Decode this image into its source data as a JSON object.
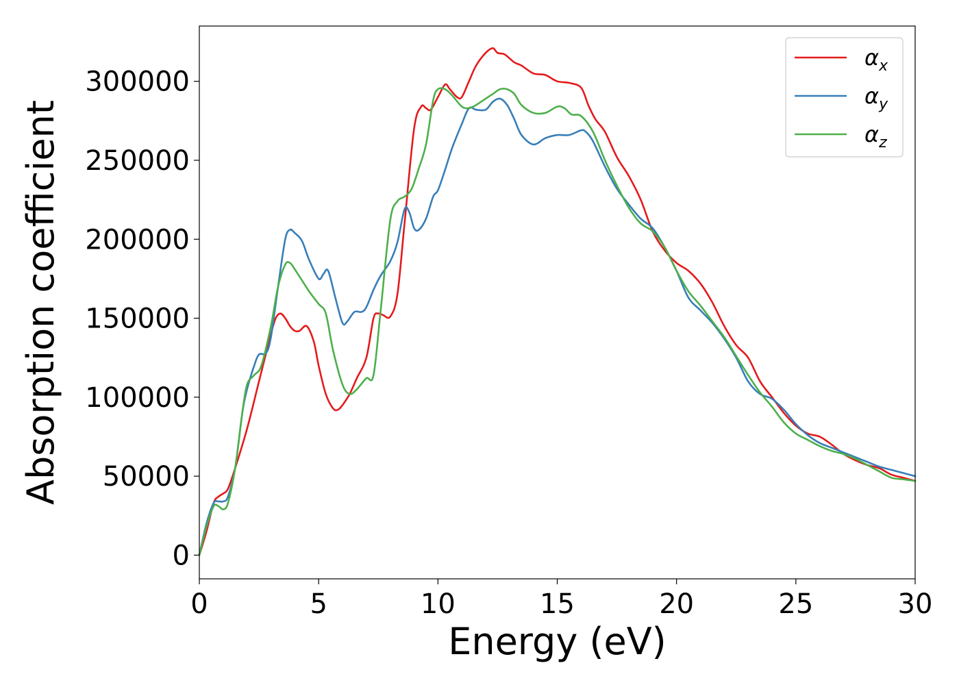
{
  "chart_data": {
    "type": "line",
    "xlabel": "Energy (eV)",
    "ylabel": "Absorption coefficient",
    "xlim": [
      0,
      30
    ],
    "ylim": [
      -15000,
      335000
    ],
    "xticks": [
      0,
      5,
      10,
      15,
      20,
      25,
      30
    ],
    "yticks": [
      0,
      50000,
      100000,
      150000,
      200000,
      250000,
      300000
    ],
    "grid": false,
    "legend_position": "top-right",
    "series": [
      {
        "name": "α",
        "subscript": "x",
        "color": "#e41a1c",
        "x": [
          0,
          0.3,
          0.6,
          0.8,
          1.0,
          1.2,
          1.5,
          2.0,
          2.5,
          3.0,
          3.2,
          3.4,
          3.6,
          3.8,
          4.0,
          4.2,
          4.5,
          4.8,
          5.0,
          5.3,
          5.6,
          5.8,
          6.0,
          6.3,
          6.6,
          7.0,
          7.3,
          7.5,
          7.7,
          8.0,
          8.3,
          8.6,
          9.0,
          9.3,
          9.5,
          9.7,
          10.0,
          10.3,
          10.5,
          10.8,
          11.0,
          11.3,
          11.6,
          12.0,
          12.3,
          12.5,
          12.8,
          13.2,
          13.5,
          14.0,
          14.5,
          15.0,
          15.5,
          16.0,
          16.3,
          16.6,
          17.0,
          17.5,
          18.0,
          18.5,
          19.0,
          19.5,
          20.0,
          20.5,
          21.0,
          21.5,
          22.0,
          22.5,
          23.0,
          23.5,
          24.0,
          24.5,
          25.0,
          25.5,
          26.0,
          26.5,
          27.0,
          27.5,
          28.0,
          28.5,
          29.0,
          29.5,
          30.0
        ],
        "values": [
          0,
          15000,
          33000,
          37000,
          39000,
          42000,
          55000,
          80000,
          110000,
          140000,
          150000,
          153000,
          150000,
          145000,
          142000,
          142000,
          145000,
          135000,
          120000,
          102000,
          93000,
          92000,
          95000,
          102000,
          112000,
          125000,
          150000,
          153000,
          152000,
          151000,
          165000,
          210000,
          270000,
          284000,
          283000,
          282000,
          290000,
          298000,
          295000,
          290000,
          290000,
          300000,
          310000,
          318000,
          321000,
          318000,
          317000,
          312000,
          310000,
          305000,
          304000,
          300000,
          299000,
          296000,
          285000,
          276000,
          268000,
          252000,
          240000,
          225000,
          205000,
          193000,
          185000,
          180000,
          172000,
          160000,
          145000,
          133000,
          125000,
          110000,
          100000,
          90000,
          82000,
          77000,
          75000,
          70000,
          64000,
          60000,
          57000,
          55000,
          51000,
          49000,
          47000
        ]
      },
      {
        "name": "α",
        "subscript": "y",
        "color": "#377eb8",
        "x": [
          0,
          0.3,
          0.6,
          0.8,
          1.0,
          1.2,
          1.5,
          1.8,
          2.0,
          2.3,
          2.5,
          2.8,
          3.0,
          3.3,
          3.6,
          3.8,
          4.0,
          4.3,
          4.6,
          5.0,
          5.2,
          5.4,
          5.7,
          6.0,
          6.2,
          6.5,
          6.8,
          7.0,
          7.3,
          7.6,
          8.0,
          8.3,
          8.6,
          8.8,
          9.0,
          9.2,
          9.5,
          9.8,
          10.0,
          10.3,
          10.6,
          11.0,
          11.3,
          11.6,
          12.0,
          12.3,
          12.6,
          12.9,
          13.2,
          13.5,
          14.0,
          14.5,
          15.0,
          15.5,
          16.0,
          16.2,
          16.5,
          17.0,
          17.5,
          18.0,
          18.5,
          19.0,
          19.5,
          20.0,
          20.5,
          21.0,
          21.5,
          22.0,
          22.5,
          23.0,
          23.5,
          24.0,
          24.5,
          25.0,
          25.5,
          26.0,
          26.5,
          27.0,
          27.5,
          28.0,
          28.5,
          29.0,
          29.5,
          30.0
        ],
        "values": [
          0,
          20000,
          33000,
          34000,
          34000,
          37000,
          55000,
          90000,
          105000,
          120000,
          127000,
          128000,
          138000,
          170000,
          200000,
          206000,
          204000,
          199000,
          187000,
          175000,
          178000,
          180000,
          163000,
          147000,
          148000,
          154000,
          154000,
          157000,
          168000,
          177000,
          186000,
          198000,
          219000,
          217000,
          207000,
          206000,
          213000,
          227000,
          231000,
          244000,
          258000,
          273000,
          283000,
          282000,
          282000,
          287000,
          289000,
          285000,
          276000,
          266000,
          260000,
          264000,
          266000,
          266000,
          269000,
          268000,
          262000,
          246000,
          232000,
          222000,
          213000,
          207000,
          195000,
          180000,
          163000,
          155000,
          147000,
          137000,
          125000,
          110000,
          102000,
          99000,
          92000,
          83000,
          76000,
          71000,
          68000,
          65000,
          62000,
          59000,
          56000,
          54000,
          52000,
          50000
        ]
      },
      {
        "name": "α",
        "subscript": "z",
        "color": "#4daf4a",
        "x": [
          0,
          0.3,
          0.6,
          0.8,
          1.0,
          1.2,
          1.5,
          1.8,
          2.0,
          2.3,
          2.6,
          3.0,
          3.3,
          3.6,
          3.8,
          4.0,
          4.3,
          4.6,
          5.0,
          5.3,
          5.6,
          6.0,
          6.3,
          6.6,
          7.0,
          7.3,
          7.6,
          8.0,
          8.3,
          8.6,
          8.9,
          9.2,
          9.5,
          9.8,
          10.0,
          10.3,
          10.6,
          11.0,
          11.3,
          11.6,
          12.0,
          12.3,
          12.6,
          12.9,
          13.2,
          13.5,
          14.0,
          14.5,
          15.0,
          15.3,
          15.6,
          16.0,
          16.5,
          17.0,
          17.5,
          18.0,
          18.5,
          19.0,
          19.5,
          20.0,
          20.5,
          21.0,
          21.5,
          22.0,
          22.5,
          23.0,
          23.5,
          24.0,
          24.5,
          25.0,
          25.5,
          26.0,
          26.5,
          27.0,
          27.5,
          28.0,
          28.5,
          29.0,
          29.5,
          30.0
        ],
        "values": [
          0,
          18000,
          31000,
          31000,
          29000,
          33000,
          55000,
          90000,
          108000,
          114000,
          120000,
          145000,
          170000,
          184000,
          185000,
          181000,
          174000,
          167000,
          159000,
          153000,
          130000,
          108000,
          102000,
          105000,
          112000,
          114000,
          155000,
          212000,
          224000,
          227000,
          232000,
          245000,
          260000,
          288000,
          295000,
          295000,
          291000,
          284000,
          283000,
          285000,
          289000,
          292000,
          295000,
          295000,
          292000,
          285000,
          280000,
          280000,
          284000,
          283000,
          279000,
          278000,
          268000,
          250000,
          234000,
          220000,
          210000,
          205000,
          195000,
          180000,
          167000,
          158000,
          148000,
          138000,
          126000,
          114000,
          103000,
          94000,
          84000,
          77000,
          73000,
          69000,
          66000,
          64000,
          61000,
          57000,
          53000,
          49000,
          48000,
          47000
        ]
      }
    ]
  }
}
